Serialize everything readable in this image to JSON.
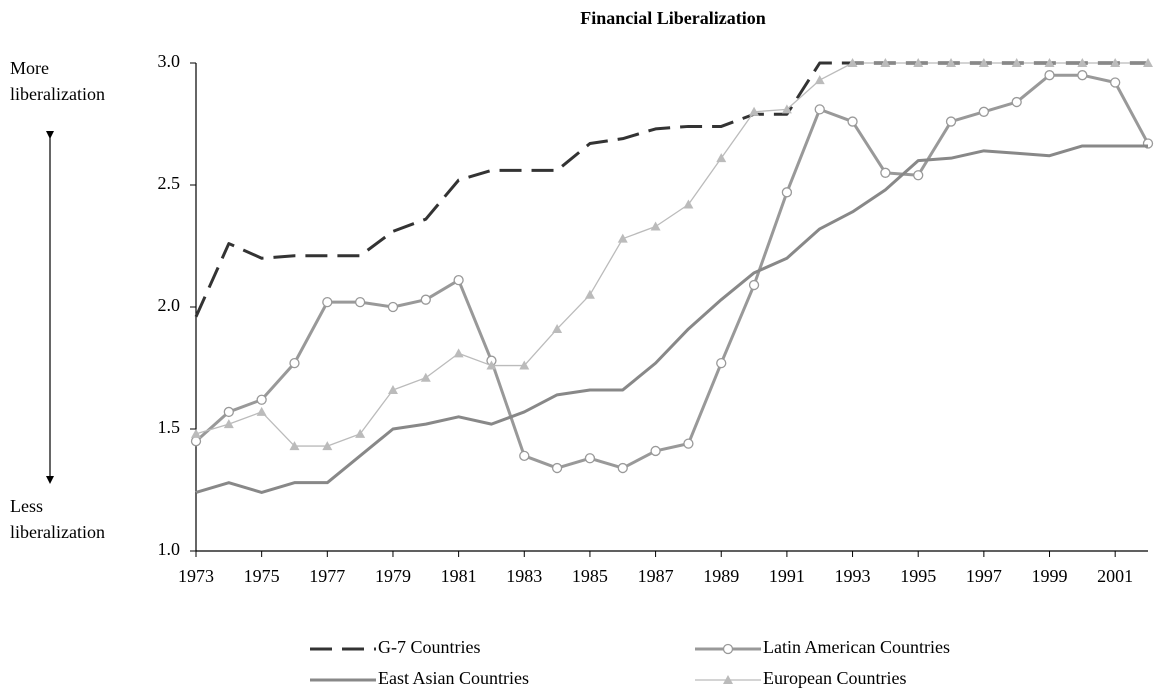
{
  "chart_data": {
    "type": "line",
    "title": "Financial Liberalization",
    "annotations": [
      {
        "lines": [
          "More",
          "liberalization"
        ]
      },
      {
        "lines": [
          "Less",
          "liberalization"
        ]
      }
    ],
    "x": [
      1973,
      1974,
      1975,
      1976,
      1977,
      1978,
      1979,
      1980,
      1981,
      1982,
      1983,
      1984,
      1985,
      1986,
      1987,
      1988,
      1989,
      1990,
      1991,
      1992,
      1993,
      1994,
      1995,
      1996,
      1997,
      1998,
      1999,
      2000,
      2001,
      2002
    ],
    "xlim": [
      1973,
      2002
    ],
    "xticks": [
      1973,
      1975,
      1977,
      1979,
      1981,
      1983,
      1985,
      1987,
      1989,
      1991,
      1993,
      1995,
      1997,
      1999,
      2001
    ],
    "ylim": [
      1.0,
      3.0
    ],
    "yticks": [
      {
        "value": 1.0,
        "label": "1.0"
      },
      1.5,
      {
        "value": 2.0,
        "label": "2.0"
      },
      2.5,
      {
        "value": 3.0,
        "label": "3.0"
      }
    ],
    "grid": false,
    "series": [
      {
        "name": "G-7 Countries",
        "color": "#333333",
        "dash": true,
        "marker": "none",
        "values": [
          1.96,
          2.26,
          2.2,
          2.21,
          2.21,
          2.21,
          2.31,
          2.36,
          2.52,
          2.56,
          2.56,
          2.56,
          2.67,
          2.69,
          2.73,
          2.74,
          2.74,
          2.79,
          2.79,
          3.0,
          3.0,
          3.0,
          3.0,
          3.0,
          3.0,
          3.0,
          3.0,
          3.0,
          3.0,
          3.0
        ]
      },
      {
        "name": "Latin American Countries",
        "color": "#999999",
        "dash": false,
        "marker": "circle",
        "values": [
          1.45,
          1.57,
          1.62,
          1.77,
          2.02,
          2.02,
          2.0,
          2.03,
          2.11,
          1.78,
          1.39,
          1.34,
          1.38,
          1.34,
          1.41,
          1.44,
          1.77,
          2.09,
          2.47,
          2.81,
          2.76,
          2.55,
          2.54,
          2.76,
          2.8,
          2.84,
          2.95,
          2.95,
          2.92,
          2.67
        ]
      },
      {
        "name": "East Asian Countries",
        "color": "#888888",
        "dash": false,
        "marker": "none",
        "values": [
          1.24,
          1.28,
          1.24,
          1.28,
          1.28,
          1.39,
          1.5,
          1.52,
          1.55,
          1.52,
          1.57,
          1.64,
          1.66,
          1.66,
          1.77,
          1.91,
          2.03,
          2.14,
          2.2,
          2.32,
          2.39,
          2.48,
          2.6,
          2.61,
          2.64,
          2.63,
          2.62,
          2.66,
          2.66,
          2.66
        ]
      },
      {
        "name": "European Countries",
        "color": "#bbbbbb",
        "dash": false,
        "marker": "triangle",
        "values": [
          1.48,
          1.52,
          1.57,
          1.43,
          1.43,
          1.48,
          1.66,
          1.71,
          1.81,
          1.76,
          1.76,
          1.91,
          2.05,
          2.28,
          2.33,
          2.42,
          2.61,
          2.8,
          2.81,
          2.93,
          3.0,
          3.0,
          3.0,
          3.0,
          3.0,
          3.0,
          3.0,
          3.0,
          3.0,
          3.0
        ]
      }
    ]
  }
}
